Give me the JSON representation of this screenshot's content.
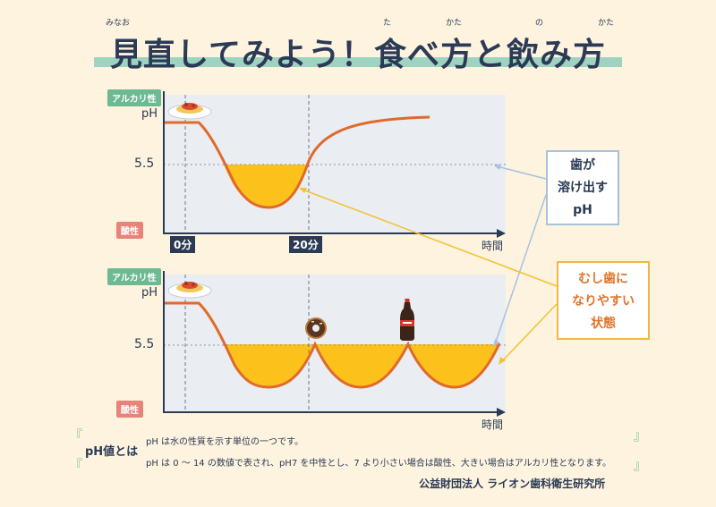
{
  "title": {
    "text": "見直してみよう！食べ方と飲み方",
    "ruby": [
      "みなお",
      "た",
      "かた",
      "の",
      "かた"
    ]
  },
  "tags": {
    "alkaline": "アルカリ性",
    "acidic": "酸性"
  },
  "axis": {
    "ph": "pH",
    "threshold": "5.5",
    "time": "時間"
  },
  "chart1": {
    "markers": [
      "0分",
      "20分"
    ]
  },
  "callouts": {
    "dissolve": [
      "歯が",
      "溶け出す",
      "pH"
    ],
    "cavity": [
      "むし歯に",
      "なりやすい",
      "状態"
    ]
  },
  "icons": {
    "pasta": "pasta-plate-icon",
    "donut": "donut-icon",
    "cola": "cola-bottle-icon"
  },
  "footer": {
    "heading": "pH値とは",
    "line1": "pH は水の性質を示す単位の一つです。",
    "line2": "pH は 0 ～ 14 の数値で表され、pH7 を中性とし、7 より小さい場合は酸性、大きい場合はアルカリ性となります。",
    "org": "公益財団法人 ライオン歯科衛生研究所"
  },
  "colors": {
    "navy": "#2b3a55",
    "yellow": "#fcc21b",
    "curve": "#e06a2b",
    "chart_bg": "#eaedf2",
    "green": "#6dba92",
    "pink": "#e7847a"
  }
}
